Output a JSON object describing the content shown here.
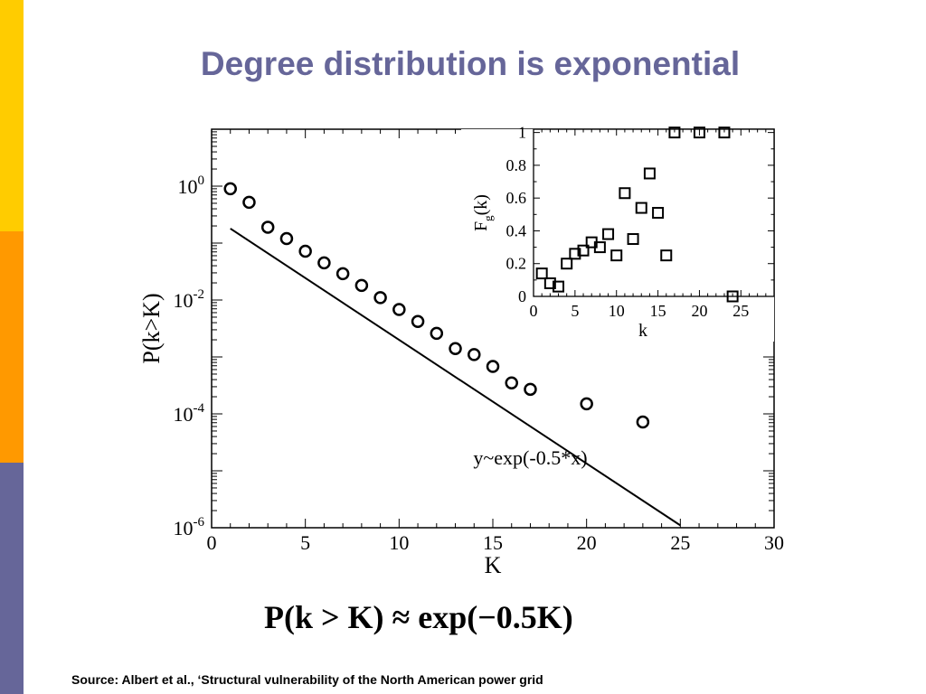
{
  "slide": {
    "title": "Degree distribution is exponential",
    "formula": "P(k > K) ≈ exp(−0.5K)",
    "source": "Source:  Albert et al., ‘Structural vulnerability of the North American power grid",
    "colors": {
      "title": "#666699",
      "bar_yellow": "#FFCC00",
      "bar_orange": "#FF9900",
      "bar_purple": "#666699"
    }
  },
  "chart_data": [
    {
      "type": "scatter",
      "xlabel": "K",
      "ylabel": "P(k>K)",
      "xlim": [
        0,
        30
      ],
      "ylim": [
        1e-06,
        10
      ],
      "y_scale": "log",
      "x_ticks": [
        0,
        5,
        10,
        15,
        20,
        25,
        30
      ],
      "y_ticks": [
        {
          "value": 1,
          "base": "10",
          "exp": "0"
        },
        {
          "value": 0.01,
          "base": "10",
          "exp": "-2"
        },
        {
          "value": 0.0001,
          "base": "10",
          "exp": "-4"
        },
        {
          "value": 1e-06,
          "base": "10",
          "exp": "-6"
        }
      ],
      "series": [
        {
          "marker": "circle",
          "points": [
            [
              1,
              0.9
            ],
            [
              2,
              0.52
            ],
            [
              3,
              0.19
            ],
            [
              4,
              0.12
            ],
            [
              5,
              0.072
            ],
            [
              6,
              0.045
            ],
            [
              7,
              0.029
            ],
            [
              8,
              0.018
            ],
            [
              9,
              0.011
            ],
            [
              10,
              0.0068
            ],
            [
              11,
              0.0042
            ],
            [
              12,
              0.0026
            ],
            [
              13,
              0.0014
            ],
            [
              14,
              0.0011
            ],
            [
              15,
              0.00068
            ],
            [
              16,
              0.00035
            ],
            [
              17,
              0.00027
            ],
            [
              20,
              0.00015
            ],
            [
              23,
              7.2e-05
            ]
          ]
        },
        {
          "marker": "line",
          "points": [
            [
              1,
              0.18
            ],
            [
              25,
              1.1e-06
            ]
          ]
        }
      ],
      "annotations": [
        {
          "text": "y~exp(-0.5*x)",
          "x": 17,
          "y": 1.3e-05
        }
      ]
    },
    {
      "type": "scatter",
      "xlabel": "k",
      "ylabel": "F",
      "ylabel_sub": "g",
      "ylabel_suffix": "(k)",
      "xlim": [
        0,
        29
      ],
      "ylim": [
        0,
        1.02
      ],
      "x_ticks": [
        0,
        5,
        10,
        15,
        20,
        25
      ],
      "y_ticks": [
        0,
        0.2,
        0.4,
        0.6,
        0.8,
        1
      ],
      "y_tick_labels": [
        "0",
        "0.2",
        "0.4",
        "0.6",
        "0.8",
        "1"
      ],
      "series": [
        {
          "marker": "square",
          "points": [
            [
              1,
              0.14
            ],
            [
              2,
              0.08
            ],
            [
              3,
              0.06
            ],
            [
              4,
              0.2
            ],
            [
              5,
              0.26
            ],
            [
              6,
              0.28
            ],
            [
              7,
              0.33
            ],
            [
              8,
              0.3
            ],
            [
              9,
              0.38
            ],
            [
              10,
              0.25
            ],
            [
              11,
              0.63
            ],
            [
              12,
              0.35
            ],
            [
              13,
              0.54
            ],
            [
              14,
              0.75
            ],
            [
              15,
              0.51
            ],
            [
              16,
              0.25
            ],
            [
              17,
              1
            ],
            [
              20,
              1
            ],
            [
              23,
              1
            ],
            [
              24,
              0
            ]
          ]
        }
      ]
    }
  ]
}
